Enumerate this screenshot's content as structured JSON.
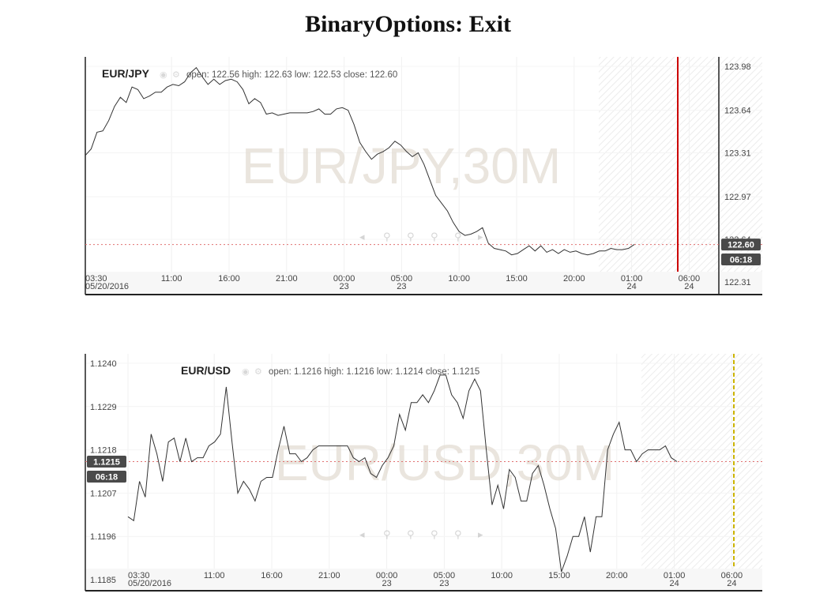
{
  "title": "BinaryOptions: Exit",
  "chart_data": [
    {
      "type": "line",
      "symbol": "EUR/JPY",
      "watermark": "EUR/JPY,30M",
      "ohlc_text": "open: 122.56  high: 122.63  low: 122.53  close: 122.60",
      "ylim": [
        122.31,
        123.98
      ],
      "y_ticks": [
        "123.98",
        "123.64",
        "123.31",
        "122.97",
        "122.64",
        "122.31"
      ],
      "x_ticks": [
        {
          "time": "03:30",
          "date": "05/20/2016"
        },
        {
          "time": "11:00",
          "date": ""
        },
        {
          "time": "16:00",
          "date": ""
        },
        {
          "time": "21:00",
          "date": ""
        },
        {
          "time": "00:00",
          "date": "23"
        },
        {
          "time": "05:00",
          "date": "23"
        },
        {
          "time": "10:00",
          "date": ""
        },
        {
          "time": "15:00",
          "date": ""
        },
        {
          "time": "20:00",
          "date": ""
        },
        {
          "time": "01:00",
          "date": "24"
        },
        {
          "time": "06:00",
          "date": "24"
        }
      ],
      "x_tick_units": [
        0,
        15,
        25,
        35,
        45,
        55,
        65,
        75,
        85,
        95,
        105
      ],
      "values": [
        123.29,
        123.34,
        123.47,
        123.48,
        123.56,
        123.67,
        123.74,
        123.7,
        123.82,
        123.8,
        123.73,
        123.75,
        123.78,
        123.78,
        123.82,
        123.84,
        123.83,
        123.86,
        123.93,
        123.97,
        123.9,
        123.84,
        123.88,
        123.84,
        123.87,
        123.88,
        123.86,
        123.8,
        123.69,
        123.73,
        123.7,
        123.61,
        123.62,
        123.6,
        123.61,
        123.62,
        123.62,
        123.62,
        123.62,
        123.63,
        123.65,
        123.61,
        123.61,
        123.65,
        123.66,
        123.64,
        123.53,
        123.39,
        123.32,
        123.26,
        123.3,
        123.32,
        123.35,
        123.4,
        123.37,
        123.32,
        123.28,
        123.31,
        123.22,
        123.1,
        122.98,
        122.92,
        122.86,
        122.77,
        122.7,
        122.67,
        122.68,
        122.7,
        122.73,
        122.61,
        122.57,
        122.56,
        122.55,
        122.52,
        122.53,
        122.56,
        122.59,
        122.55,
        122.59,
        122.54,
        122.56,
        122.53,
        122.56,
        122.54,
        122.55,
        122.53,
        122.52,
        122.53,
        122.55,
        122.55,
        122.57,
        122.56,
        122.56,
        122.57,
        122.6
      ],
      "value_label": "122.60",
      "timer_label": "06:18",
      "exit_line_color": "#cc0000",
      "price_line_color": "#e07070"
    },
    {
      "type": "line",
      "symbol": "EUR/USD",
      "watermark": "EUR/USD,30M",
      "ohlc_text": "open: 1.1216  high: 1.1216  low: 1.1214  close: 1.1215",
      "ylim": [
        1.1185,
        1.124
      ],
      "y_ticks": [
        "1.1240",
        "1.1229",
        "1.1218",
        "1.1207",
        "1.1196",
        "1.1185"
      ],
      "x_ticks": [
        {
          "time": "03:30",
          "date": "05/20/2016"
        },
        {
          "time": "11:00",
          "date": ""
        },
        {
          "time": "16:00",
          "date": ""
        },
        {
          "time": "21:00",
          "date": ""
        },
        {
          "time": "00:00",
          "date": "23"
        },
        {
          "time": "05:00",
          "date": "23"
        },
        {
          "time": "10:00",
          "date": ""
        },
        {
          "time": "15:00",
          "date": ""
        },
        {
          "time": "20:00",
          "date": ""
        },
        {
          "time": "01:00",
          "date": "24"
        },
        {
          "time": "06:00",
          "date": "24"
        }
      ],
      "x_tick_units": [
        0,
        15,
        25,
        35,
        45,
        55,
        65,
        75,
        85,
        95,
        105
      ],
      "values": [
        1.1201,
        1.12,
        1.121,
        1.1206,
        1.1222,
        1.1217,
        1.121,
        1.122,
        1.1221,
        1.1215,
        1.1221,
        1.1215,
        1.1216,
        1.1216,
        1.1219,
        1.122,
        1.1222,
        1.1234,
        1.122,
        1.1207,
        1.121,
        1.1208,
        1.1205,
        1.121,
        1.1211,
        1.1211,
        1.1218,
        1.1224,
        1.1217,
        1.1217,
        1.1215,
        1.1216,
        1.1218,
        1.1219,
        1.1219,
        1.1219,
        1.1219,
        1.1219,
        1.1219,
        1.1216,
        1.1215,
        1.1216,
        1.1212,
        1.1211,
        1.1214,
        1.1216,
        1.1219,
        1.1227,
        1.1223,
        1.123,
        1.123,
        1.1232,
        1.123,
        1.1233,
        1.1237,
        1.1237,
        1.1232,
        1.123,
        1.1226,
        1.1233,
        1.1236,
        1.1233,
        1.1218,
        1.1204,
        1.1209,
        1.1203,
        1.1213,
        1.1211,
        1.1205,
        1.1205,
        1.1212,
        1.1214,
        1.1209,
        1.1203,
        1.1198,
        1.1187,
        1.1191,
        1.1196,
        1.1196,
        1.1201,
        1.1192,
        1.1201,
        1.1201,
        1.1218,
        1.1222,
        1.1225,
        1.1218,
        1.1218,
        1.1215,
        1.1217,
        1.1218,
        1.1218,
        1.1218,
        1.1219,
        1.1216,
        1.1215
      ],
      "value_label": "1.1215",
      "timer_label": "06:18",
      "exit_line_color": "#ccb400",
      "price_line_color": "#e07070"
    }
  ]
}
